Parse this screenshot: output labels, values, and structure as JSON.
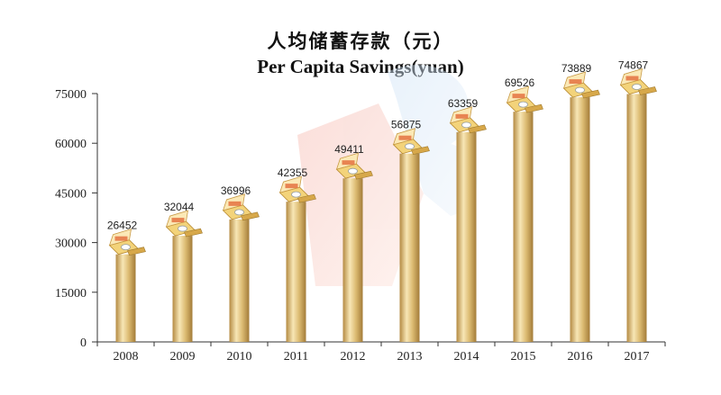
{
  "title_cn": "人均储蓄存款（元）",
  "title_en": "Per Capita Savings(yuan)",
  "colors": {
    "bar_light": "#f4e3b0",
    "bar_mid": "#d8b56c",
    "bar_dark": "#a47e3a",
    "axis": "#333333"
  },
  "chart_data": {
    "type": "bar",
    "title": "人均储蓄存款（元）",
    "subtitle": "Per Capita Savings(yuan)",
    "categories": [
      "2008",
      "2009",
      "2010",
      "2011",
      "2012",
      "2013",
      "2014",
      "2015",
      "2016",
      "2017"
    ],
    "values": [
      26452,
      32044,
      36996,
      42355,
      49411,
      56875,
      63359,
      69526,
      73889,
      74867
    ],
    "yticks": [
      0,
      15000,
      30000,
      45000,
      60000,
      75000
    ],
    "ylim": [
      0,
      75000
    ],
    "xlabel": "",
    "ylabel": "",
    "grid": false,
    "legend": "none"
  }
}
